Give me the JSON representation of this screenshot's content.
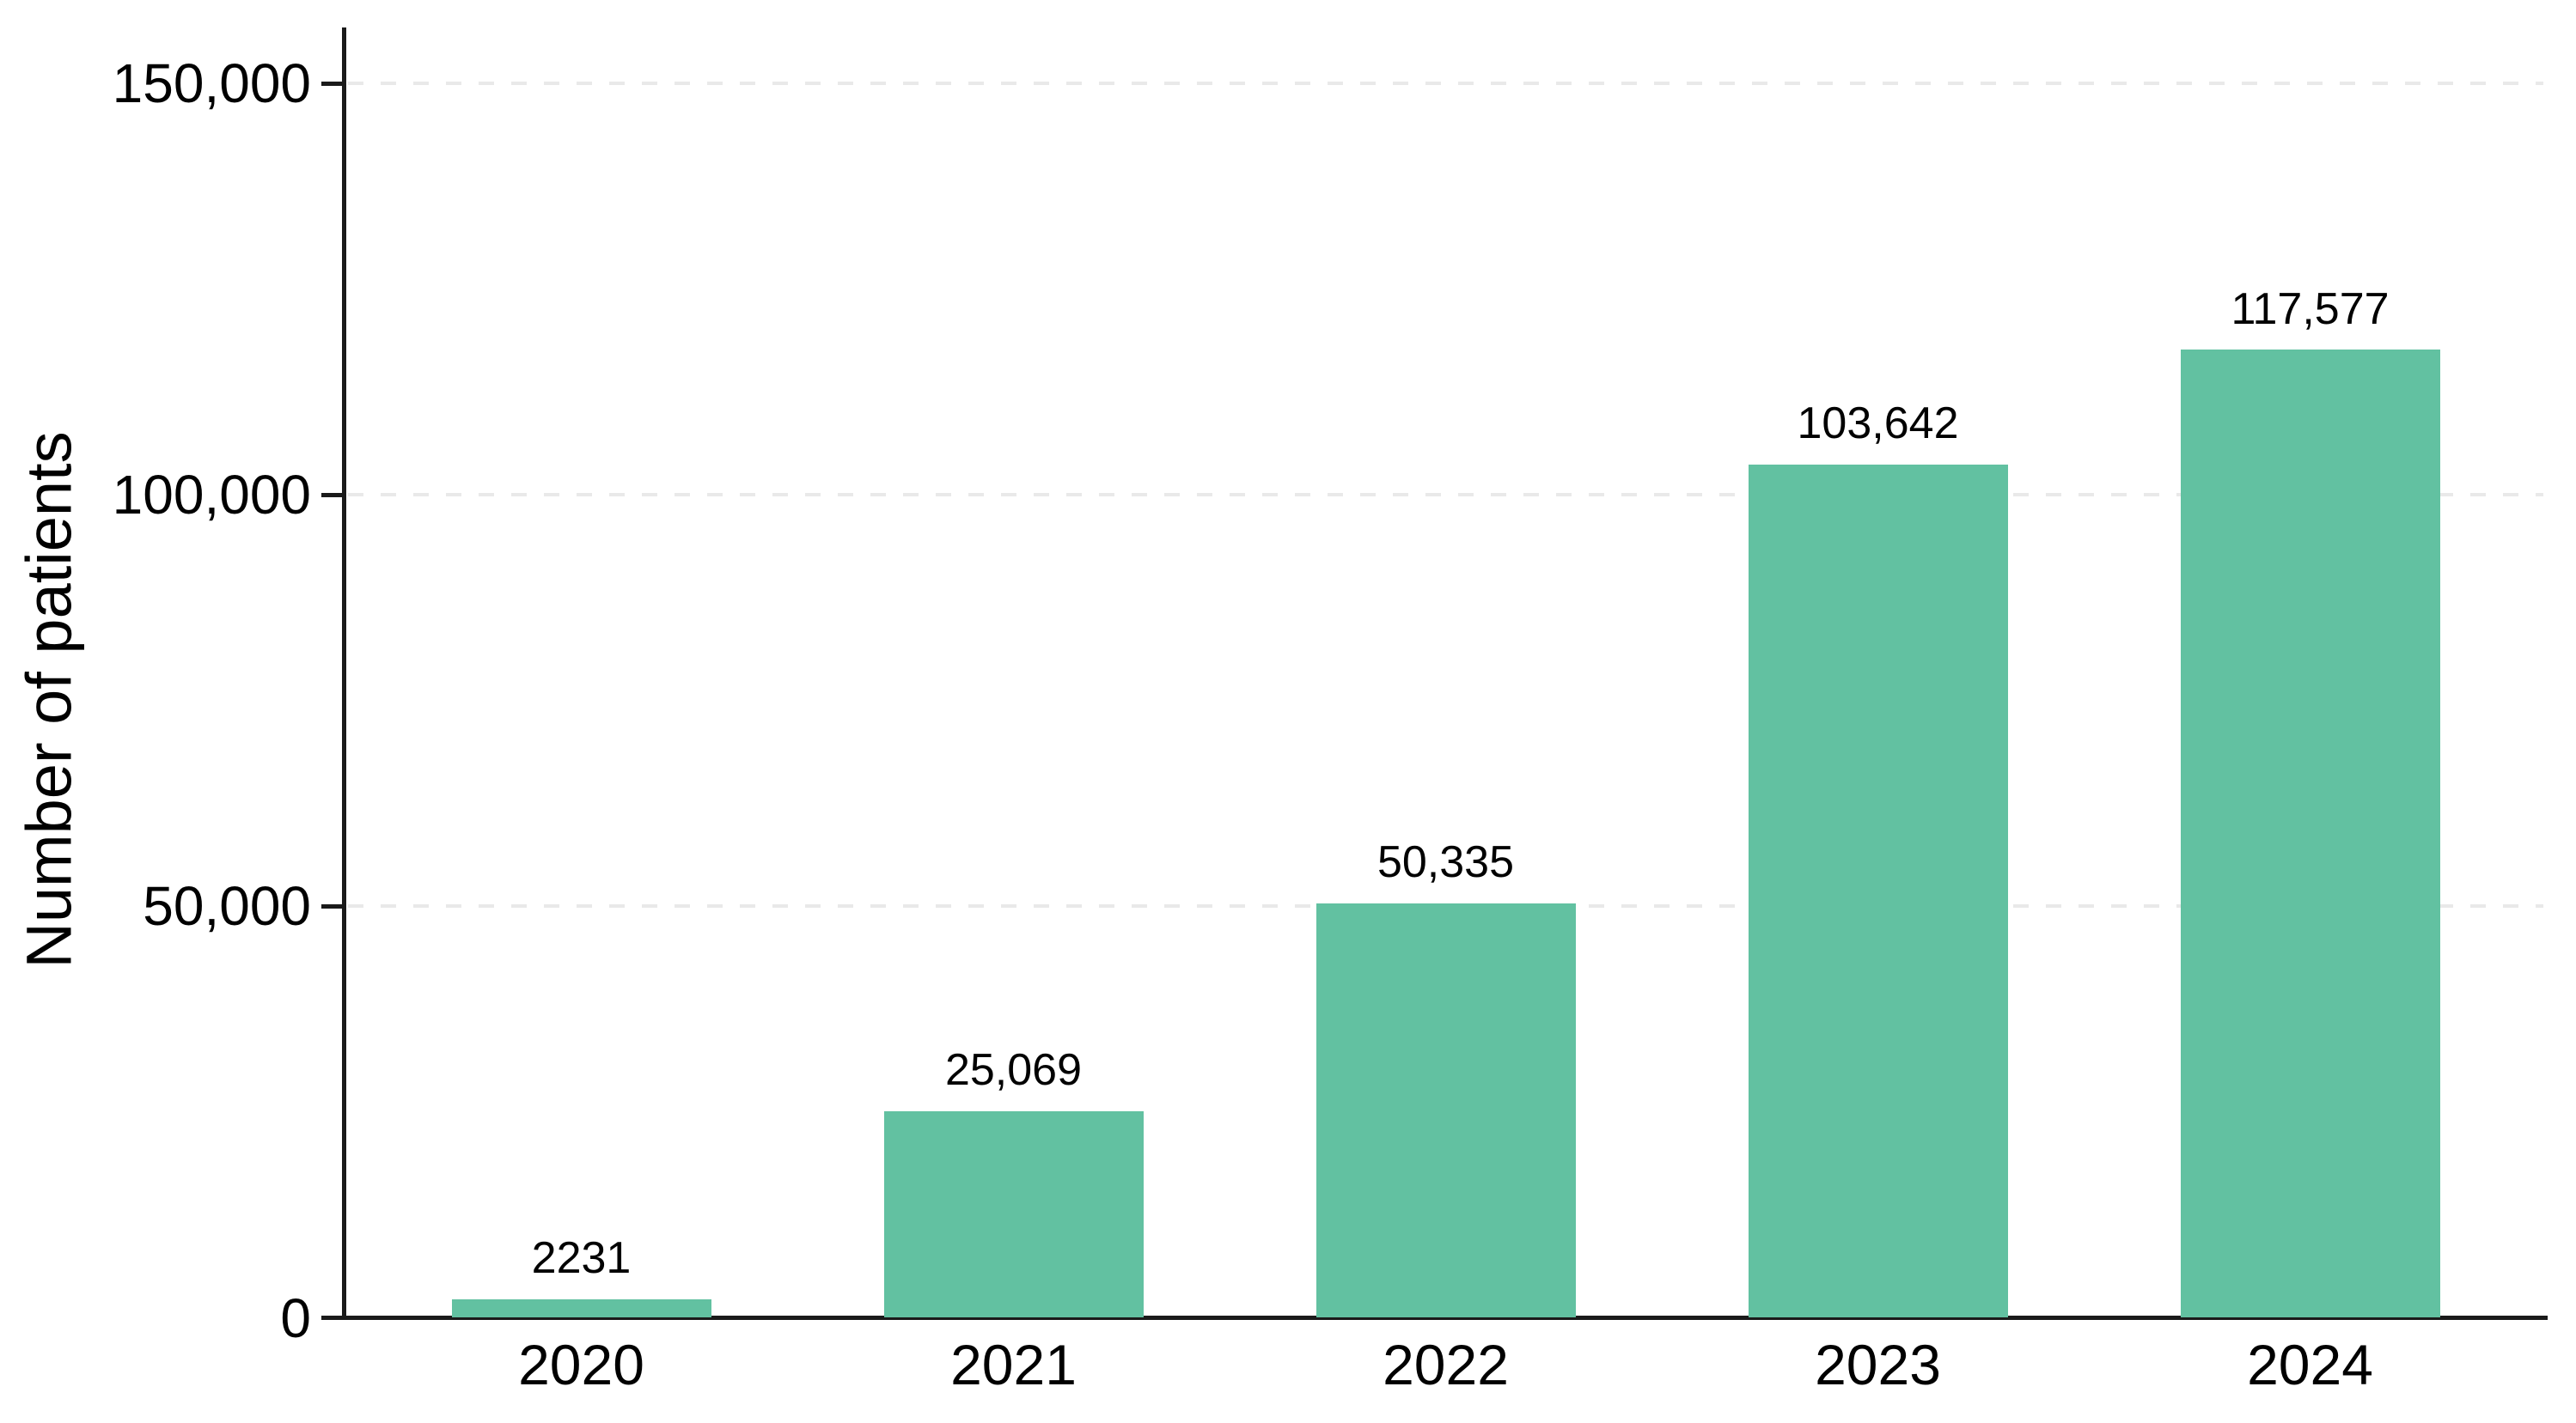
{
  "chart_data": {
    "type": "bar",
    "title": "",
    "xlabel": "",
    "ylabel": "Number of patients",
    "categories": [
      "2020",
      "2021",
      "2022",
      "2023",
      "2024"
    ],
    "values": [
      2231,
      25069,
      50335,
      103642,
      117577
    ],
    "value_labels": [
      "2231",
      "25,069",
      "50,335",
      "103,642",
      "117,577"
    ],
    "series_name": "Number of patients",
    "ylim": [
      0,
      150000
    ],
    "y_ticks": [
      {
        "value": 0,
        "label": "0"
      },
      {
        "value": 50000,
        "label": "50,000"
      },
      {
        "value": 100000,
        "label": "100,000"
      },
      {
        "value": 150000,
        "label": "150,000"
      }
    ],
    "grid": "horizontal dashed gridlines at 50,000 / 100,000 / 150,000",
    "legend_position": "none",
    "colors": {
      "bar_fill": "#62c1a1",
      "axis": "#1a1a1a",
      "gridline": "#e9e9e9",
      "text": "#000000",
      "background": "#ffffff"
    }
  }
}
